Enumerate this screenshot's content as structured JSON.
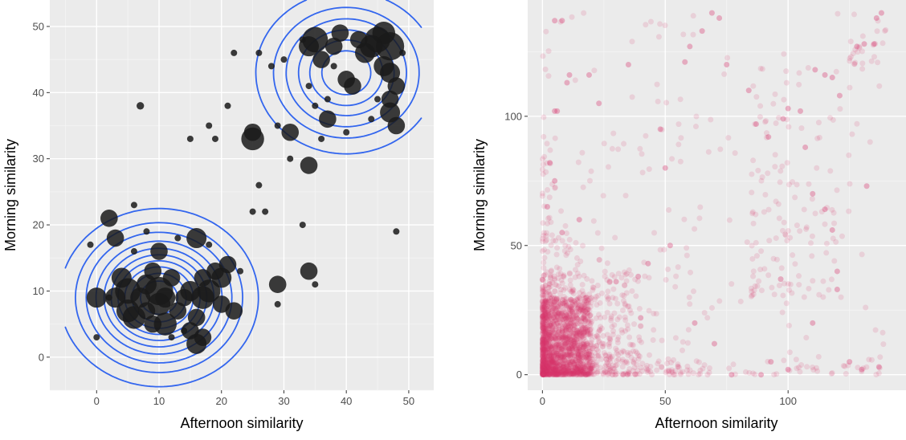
{
  "colors": {
    "panel_bg": "#ebebeb",
    "grid_major": "#ffffff",
    "grid_minor": "#f5f5f5",
    "contour": "#3366ee",
    "points_left": "#1a1a1a",
    "points_right": "#d6336c"
  },
  "chart_data": [
    {
      "type": "scatter",
      "title": "",
      "xlabel": "Afternoon similarity",
      "ylabel": "Morning similarity",
      "xlim": [
        -7.5,
        54
      ],
      "ylim": [
        -5,
        54
      ],
      "xticks": [
        0,
        10,
        20,
        30,
        40,
        50
      ],
      "yticks": [
        0,
        10,
        20,
        30,
        40,
        50
      ],
      "grid": true,
      "legend": "none",
      "overlay": "2d density contours",
      "density_centers": [
        {
          "x": 10,
          "y": 9,
          "sx": 6.5,
          "sy": 5.5,
          "w": 1.0
        },
        {
          "x": 40,
          "y": 43,
          "sx": 6.5,
          "sy": 5.5,
          "w": 0.6
        }
      ],
      "contour_levels": [
        0.05,
        0.12,
        0.2,
        0.3,
        0.4,
        0.5,
        0.6,
        0.7,
        0.8,
        0.9
      ],
      "points": [
        {
          "x": 0,
          "y": 9,
          "size": 3.5
        },
        {
          "x": 2,
          "y": 21,
          "size": 3
        },
        {
          "x": 3,
          "y": 18,
          "size": 3
        },
        {
          "x": 3,
          "y": 9,
          "size": 3.5
        },
        {
          "x": 4,
          "y": 12,
          "size": 3.5
        },
        {
          "x": 5,
          "y": 7,
          "size": 4
        },
        {
          "x": 5,
          "y": 10,
          "size": 4.5
        },
        {
          "x": 6,
          "y": 6,
          "size": 4
        },
        {
          "x": 7,
          "y": 9,
          "size": 3.5
        },
        {
          "x": 8,
          "y": 7,
          "size": 3
        },
        {
          "x": 8,
          "y": 11,
          "size": 3.5
        },
        {
          "x": 9,
          "y": 5,
          "size": 3
        },
        {
          "x": 9,
          "y": 13,
          "size": 3
        },
        {
          "x": 10,
          "y": 8,
          "size": 4
        },
        {
          "x": 10,
          "y": 10,
          "size": 5
        },
        {
          "x": 10,
          "y": 16,
          "size": 3
        },
        {
          "x": 11,
          "y": 5,
          "size": 4
        },
        {
          "x": 11,
          "y": 9,
          "size": 3.5
        },
        {
          "x": 12,
          "y": 12,
          "size": 3
        },
        {
          "x": 13,
          "y": 7,
          "size": 3
        },
        {
          "x": 14,
          "y": 9,
          "size": 3
        },
        {
          "x": 15,
          "y": 4,
          "size": 3
        },
        {
          "x": 15,
          "y": 10,
          "size": 3.5
        },
        {
          "x": 16,
          "y": 2,
          "size": 3.5
        },
        {
          "x": 16,
          "y": 6,
          "size": 3
        },
        {
          "x": 16,
          "y": 18,
          "size": 3.5
        },
        {
          "x": 17,
          "y": 9,
          "size": 4
        },
        {
          "x": 17,
          "y": 12,
          "size": 3
        },
        {
          "x": 17,
          "y": 3,
          "size": 3
        },
        {
          "x": 18,
          "y": 10,
          "size": 4
        },
        {
          "x": 19,
          "y": 13,
          "size": 3
        },
        {
          "x": 20,
          "y": 8,
          "size": 3
        },
        {
          "x": 20,
          "y": 12,
          "size": 3.5
        },
        {
          "x": 21,
          "y": 14,
          "size": 3
        },
        {
          "x": 22,
          "y": 7,
          "size": 3
        },
        {
          "x": 25,
          "y": 33,
          "size": 4
        },
        {
          "x": 25,
          "y": 34,
          "size": 3
        },
        {
          "x": 29,
          "y": 11,
          "size": 3
        },
        {
          "x": 31,
          "y": 34,
          "size": 3
        },
        {
          "x": 34,
          "y": 29,
          "size": 3
        },
        {
          "x": 34,
          "y": 13,
          "size": 3
        },
        {
          "x": 34,
          "y": 47,
          "size": 3.5
        },
        {
          "x": 35,
          "y": 48,
          "size": 4.5
        },
        {
          "x": 36,
          "y": 45,
          "size": 3
        },
        {
          "x": 37,
          "y": 36,
          "size": 3
        },
        {
          "x": 38,
          "y": 47,
          "size": 3
        },
        {
          "x": 39,
          "y": 49,
          "size": 3
        },
        {
          "x": 40,
          "y": 42,
          "size": 3
        },
        {
          "x": 41,
          "y": 41,
          "size": 3
        },
        {
          "x": 42,
          "y": 48,
          "size": 3
        },
        {
          "x": 43,
          "y": 46,
          "size": 3.5
        },
        {
          "x": 44,
          "y": 47,
          "size": 4
        },
        {
          "x": 45,
          "y": 48,
          "size": 4.5
        },
        {
          "x": 46,
          "y": 44,
          "size": 3.5
        },
        {
          "x": 46,
          "y": 49,
          "size": 4
        },
        {
          "x": 47,
          "y": 47,
          "size": 5
        },
        {
          "x": 47,
          "y": 43,
          "size": 3.5
        },
        {
          "x": 47,
          "y": 39,
          "size": 3
        },
        {
          "x": 47,
          "y": 37,
          "size": 3.5
        },
        {
          "x": 48,
          "y": 35,
          "size": 3
        },
        {
          "x": 48,
          "y": 41,
          "size": 3
        },
        {
          "x": -1,
          "y": 17,
          "size": 1
        },
        {
          "x": 0,
          "y": 3,
          "size": 1
        },
        {
          "x": 2,
          "y": 9,
          "size": 1
        },
        {
          "x": 6,
          "y": 16,
          "size": 1
        },
        {
          "x": 6,
          "y": 23,
          "size": 1
        },
        {
          "x": 7,
          "y": 38,
          "size": 1.2
        },
        {
          "x": 8,
          "y": 19,
          "size": 1
        },
        {
          "x": 12,
          "y": 3,
          "size": 1
        },
        {
          "x": 13,
          "y": 18,
          "size": 1
        },
        {
          "x": 14,
          "y": 4,
          "size": 1
        },
        {
          "x": 15,
          "y": 33,
          "size": 1
        },
        {
          "x": 18,
          "y": 17,
          "size": 1
        },
        {
          "x": 18,
          "y": 35,
          "size": 1
        },
        {
          "x": 19,
          "y": 33,
          "size": 1
        },
        {
          "x": 21,
          "y": 38,
          "size": 1
        },
        {
          "x": 22,
          "y": 46,
          "size": 1
        },
        {
          "x": 23,
          "y": 13,
          "size": 1
        },
        {
          "x": 25,
          "y": 22,
          "size": 1
        },
        {
          "x": 26,
          "y": 46,
          "size": 1
        },
        {
          "x": 26,
          "y": 26,
          "size": 1
        },
        {
          "x": 27,
          "y": 22,
          "size": 1
        },
        {
          "x": 28,
          "y": 44,
          "size": 1
        },
        {
          "x": 29,
          "y": 8,
          "size": 1
        },
        {
          "x": 29,
          "y": 35,
          "size": 1
        },
        {
          "x": 31,
          "y": 30,
          "size": 1
        },
        {
          "x": 33,
          "y": 20,
          "size": 1
        },
        {
          "x": 33,
          "y": 48,
          "size": 1
        },
        {
          "x": 34,
          "y": 41,
          "size": 1
        },
        {
          "x": 35,
          "y": 38,
          "size": 1
        },
        {
          "x": 35,
          "y": 11,
          "size": 1
        },
        {
          "x": 37,
          "y": 39,
          "size": 1
        },
        {
          "x": 38,
          "y": 44,
          "size": 1
        },
        {
          "x": 40,
          "y": 34,
          "size": 1
        },
        {
          "x": 44,
          "y": 36,
          "size": 1
        },
        {
          "x": 45,
          "y": 39,
          "size": 1
        },
        {
          "x": 48,
          "y": 19,
          "size": 1
        },
        {
          "x": 49,
          "y": 46,
          "size": 1
        },
        {
          "x": 30,
          "y": 45,
          "size": 1
        },
        {
          "x": 36,
          "y": 33,
          "size": 1
        }
      ]
    },
    {
      "type": "scatter",
      "title": "",
      "xlabel": "Afternoon similarity",
      "ylabel": "Morning similarity",
      "xlim": [
        -6,
        148
      ],
      "ylim": [
        -6,
        145
      ],
      "xticks": [
        0,
        50,
        100
      ],
      "yticks": [
        0,
        50,
        100
      ],
      "grid": true,
      "legend": "none",
      "point_alpha": 0.15,
      "point_radius_px": 3.5,
      "dense_clusters": [
        {
          "x_min": 0,
          "x_max": 20,
          "y_min": 0,
          "y_max": 30,
          "n": 1400
        },
        {
          "x_min": 0,
          "x_max": 40,
          "y_min": 0,
          "y_max": 40,
          "n": 450
        },
        {
          "x_min": 0,
          "x_max": 60,
          "y_min": 0,
          "y_max": 55,
          "n": 180
        },
        {
          "x_min": 0,
          "x_max": 4,
          "y_min": 0,
          "y_max": 90,
          "n": 70
        },
        {
          "x_min": 0,
          "x_max": 140,
          "y_min": 0,
          "y_max": 6,
          "n": 90
        },
        {
          "x_min": 0,
          "x_max": 140,
          "y_min": 0,
          "y_max": 140,
          "n": 200
        },
        {
          "x_min": 85,
          "x_max": 125,
          "y_min": 30,
          "y_max": 120,
          "n": 120
        },
        {
          "x_min": 125,
          "x_max": 140,
          "y_min": 120,
          "y_max": 140,
          "n": 25
        }
      ],
      "points": [
        {
          "x": 5,
          "y": 102
        },
        {
          "x": 6,
          "y": 102
        },
        {
          "x": 5,
          "y": 137
        },
        {
          "x": 8,
          "y": 137
        },
        {
          "x": 10,
          "y": 113
        },
        {
          "x": 11,
          "y": 116
        },
        {
          "x": 19,
          "y": 116
        },
        {
          "x": 23,
          "y": 105
        },
        {
          "x": 35,
          "y": 120
        },
        {
          "x": 48,
          "y": 95
        },
        {
          "x": 50,
          "y": 80
        },
        {
          "x": 58,
          "y": 121
        },
        {
          "x": 60,
          "y": 127
        },
        {
          "x": 65,
          "y": 133
        },
        {
          "x": 69,
          "y": 140
        },
        {
          "x": 72,
          "y": 138
        },
        {
          "x": 75,
          "y": 120
        },
        {
          "x": 84,
          "y": 110
        },
        {
          "x": 87,
          "y": 97
        },
        {
          "x": 92,
          "y": 92
        },
        {
          "x": 98,
          "y": 99
        },
        {
          "x": 100,
          "y": 103
        },
        {
          "x": 105,
          "y": 102
        },
        {
          "x": 111,
          "y": 118
        },
        {
          "x": 115,
          "y": 116
        },
        {
          "x": 118,
          "y": 115
        },
        {
          "x": 121,
          "y": 108
        },
        {
          "x": 128,
          "y": 127
        },
        {
          "x": 131,
          "y": 128
        },
        {
          "x": 135,
          "y": 128
        },
        {
          "x": 136,
          "y": 138
        },
        {
          "x": 138,
          "y": 140
        },
        {
          "x": 107,
          "y": 88
        },
        {
          "x": 110,
          "y": 70
        },
        {
          "x": 115,
          "y": 64
        },
        {
          "x": 118,
          "y": 56
        },
        {
          "x": 120,
          "y": 40
        },
        {
          "x": 97,
          "y": 37
        },
        {
          "x": 89,
          "y": 0
        },
        {
          "x": 93,
          "y": 5
        },
        {
          "x": 100,
          "y": 2
        },
        {
          "x": 125,
          "y": 5
        },
        {
          "x": 130,
          "y": 2
        },
        {
          "x": 137,
          "y": 3
        },
        {
          "x": 52,
          "y": 50
        },
        {
          "x": 43,
          "y": 43
        },
        {
          "x": 39,
          "y": 38
        },
        {
          "x": 30,
          "y": 36
        },
        {
          "x": 2,
          "y": 65
        },
        {
          "x": 3,
          "y": 82
        },
        {
          "x": 5,
          "y": 75
        },
        {
          "x": 8,
          "y": 55
        },
        {
          "x": 15,
          "y": 60
        },
        {
          "x": 40,
          "y": 22
        },
        {
          "x": 62,
          "y": 20
        },
        {
          "x": 70,
          "y": 12
        },
        {
          "x": 110,
          "y": 20
        },
        {
          "x": 132,
          "y": 73
        },
        {
          "x": 120,
          "y": 33
        },
        {
          "x": 77,
          "y": 0
        }
      ]
    }
  ]
}
